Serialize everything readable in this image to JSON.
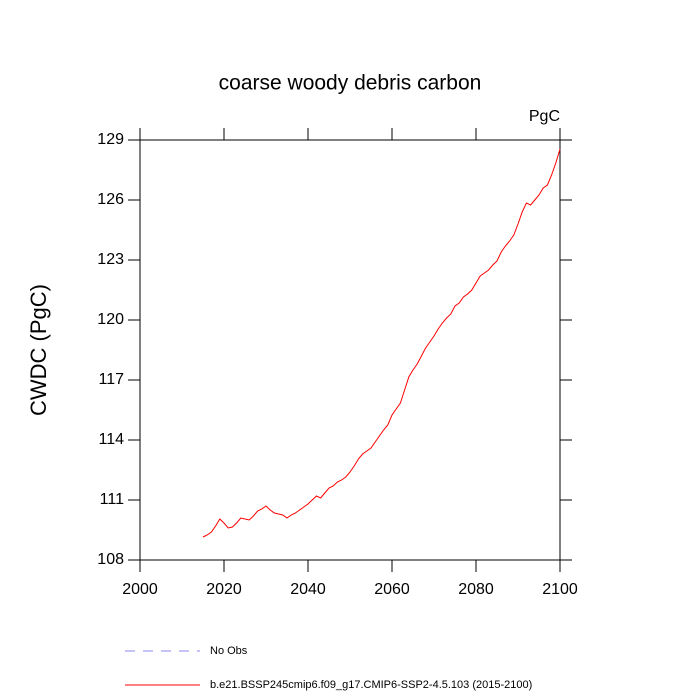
{
  "chart_data": {
    "type": "line",
    "title": "coarse woody debris carbon",
    "units": "PgC",
    "y_label": "CWDC  (PgC)",
    "xlim": [
      2000,
      2100
    ],
    "xticks": [
      2000,
      2020,
      2040,
      2060,
      2080,
      2100
    ],
    "ylim": [
      108,
      129
    ],
    "yticks": [
      108,
      111,
      114,
      117,
      120,
      123,
      126,
      129
    ],
    "x": [
      2015,
      2016,
      2017,
      2018,
      2019,
      2020,
      2021,
      2022,
      2023,
      2024,
      2025,
      2026,
      2027,
      2028,
      2029,
      2030,
      2031,
      2032,
      2033,
      2034,
      2035,
      2036,
      2037,
      2038,
      2039,
      2040,
      2041,
      2042,
      2043,
      2044,
      2045,
      2046,
      2047,
      2048,
      2049,
      2050,
      2051,
      2052,
      2053,
      2054,
      2055,
      2056,
      2057,
      2058,
      2059,
      2060,
      2061,
      2062,
      2063,
      2064,
      2065,
      2066,
      2067,
      2068,
      2069,
      2070,
      2071,
      2072,
      2073,
      2074,
      2075,
      2076,
      2077,
      2078,
      2079,
      2080,
      2081,
      2082,
      2083,
      2084,
      2085,
      2086,
      2087,
      2088,
      2089,
      2090,
      2091,
      2092,
      2093,
      2094,
      2095,
      2096,
      2097,
      2098,
      2099,
      2100
    ],
    "series": [
      {
        "name": "No Obs",
        "color": "#8888ee",
        "dashed": true,
        "values": [
          null,
          null,
          null,
          null,
          null,
          null,
          null,
          null,
          null,
          null,
          null,
          null,
          null,
          null,
          null,
          null,
          null,
          null,
          null,
          null,
          null,
          null,
          null,
          null,
          null,
          null,
          null,
          null,
          null,
          null,
          null,
          null,
          null,
          null,
          null,
          null,
          null,
          null,
          null,
          null,
          null,
          null,
          null,
          null,
          null,
          null,
          null,
          null,
          null,
          null,
          null,
          null,
          null,
          null,
          null,
          null,
          null,
          null,
          null,
          null,
          null,
          null,
          null,
          null,
          null,
          null,
          null,
          null,
          null,
          null,
          null,
          null,
          null,
          null,
          null,
          null,
          null,
          null,
          null,
          null,
          null,
          null,
          null,
          null,
          null,
          null
        ]
      },
      {
        "name": "b.e21.BSSP245cmip6.f09_g17.CMIP6-SSP2-4.5.103 (2015-2100)",
        "color": "#ff0000",
        "dashed": false,
        "values": [
          109.15,
          109.25,
          109.4,
          109.7,
          110.05,
          109.85,
          109.6,
          109.65,
          109.85,
          110.1,
          110.05,
          110.0,
          110.2,
          110.45,
          110.55,
          110.7,
          110.5,
          110.35,
          110.3,
          110.25,
          110.1,
          110.25,
          110.35,
          110.5,
          110.65,
          110.8,
          111.0,
          111.2,
          111.1,
          111.35,
          111.6,
          111.7,
          111.9,
          112.0,
          112.15,
          112.4,
          112.7,
          113.05,
          113.3,
          113.45,
          113.6,
          113.9,
          114.2,
          114.5,
          114.75,
          115.25,
          115.55,
          115.85,
          116.5,
          117.15,
          117.5,
          117.8,
          118.2,
          118.6,
          118.9,
          119.2,
          119.55,
          119.85,
          120.1,
          120.3,
          120.7,
          120.85,
          121.15,
          121.3,
          121.5,
          121.85,
          122.2,
          122.35,
          122.5,
          122.75,
          122.95,
          123.4,
          123.7,
          123.95,
          124.25,
          124.8,
          125.4,
          125.85,
          125.75,
          126.0,
          126.25,
          126.6,
          126.75,
          127.25,
          127.85,
          128.55
        ]
      }
    ]
  }
}
